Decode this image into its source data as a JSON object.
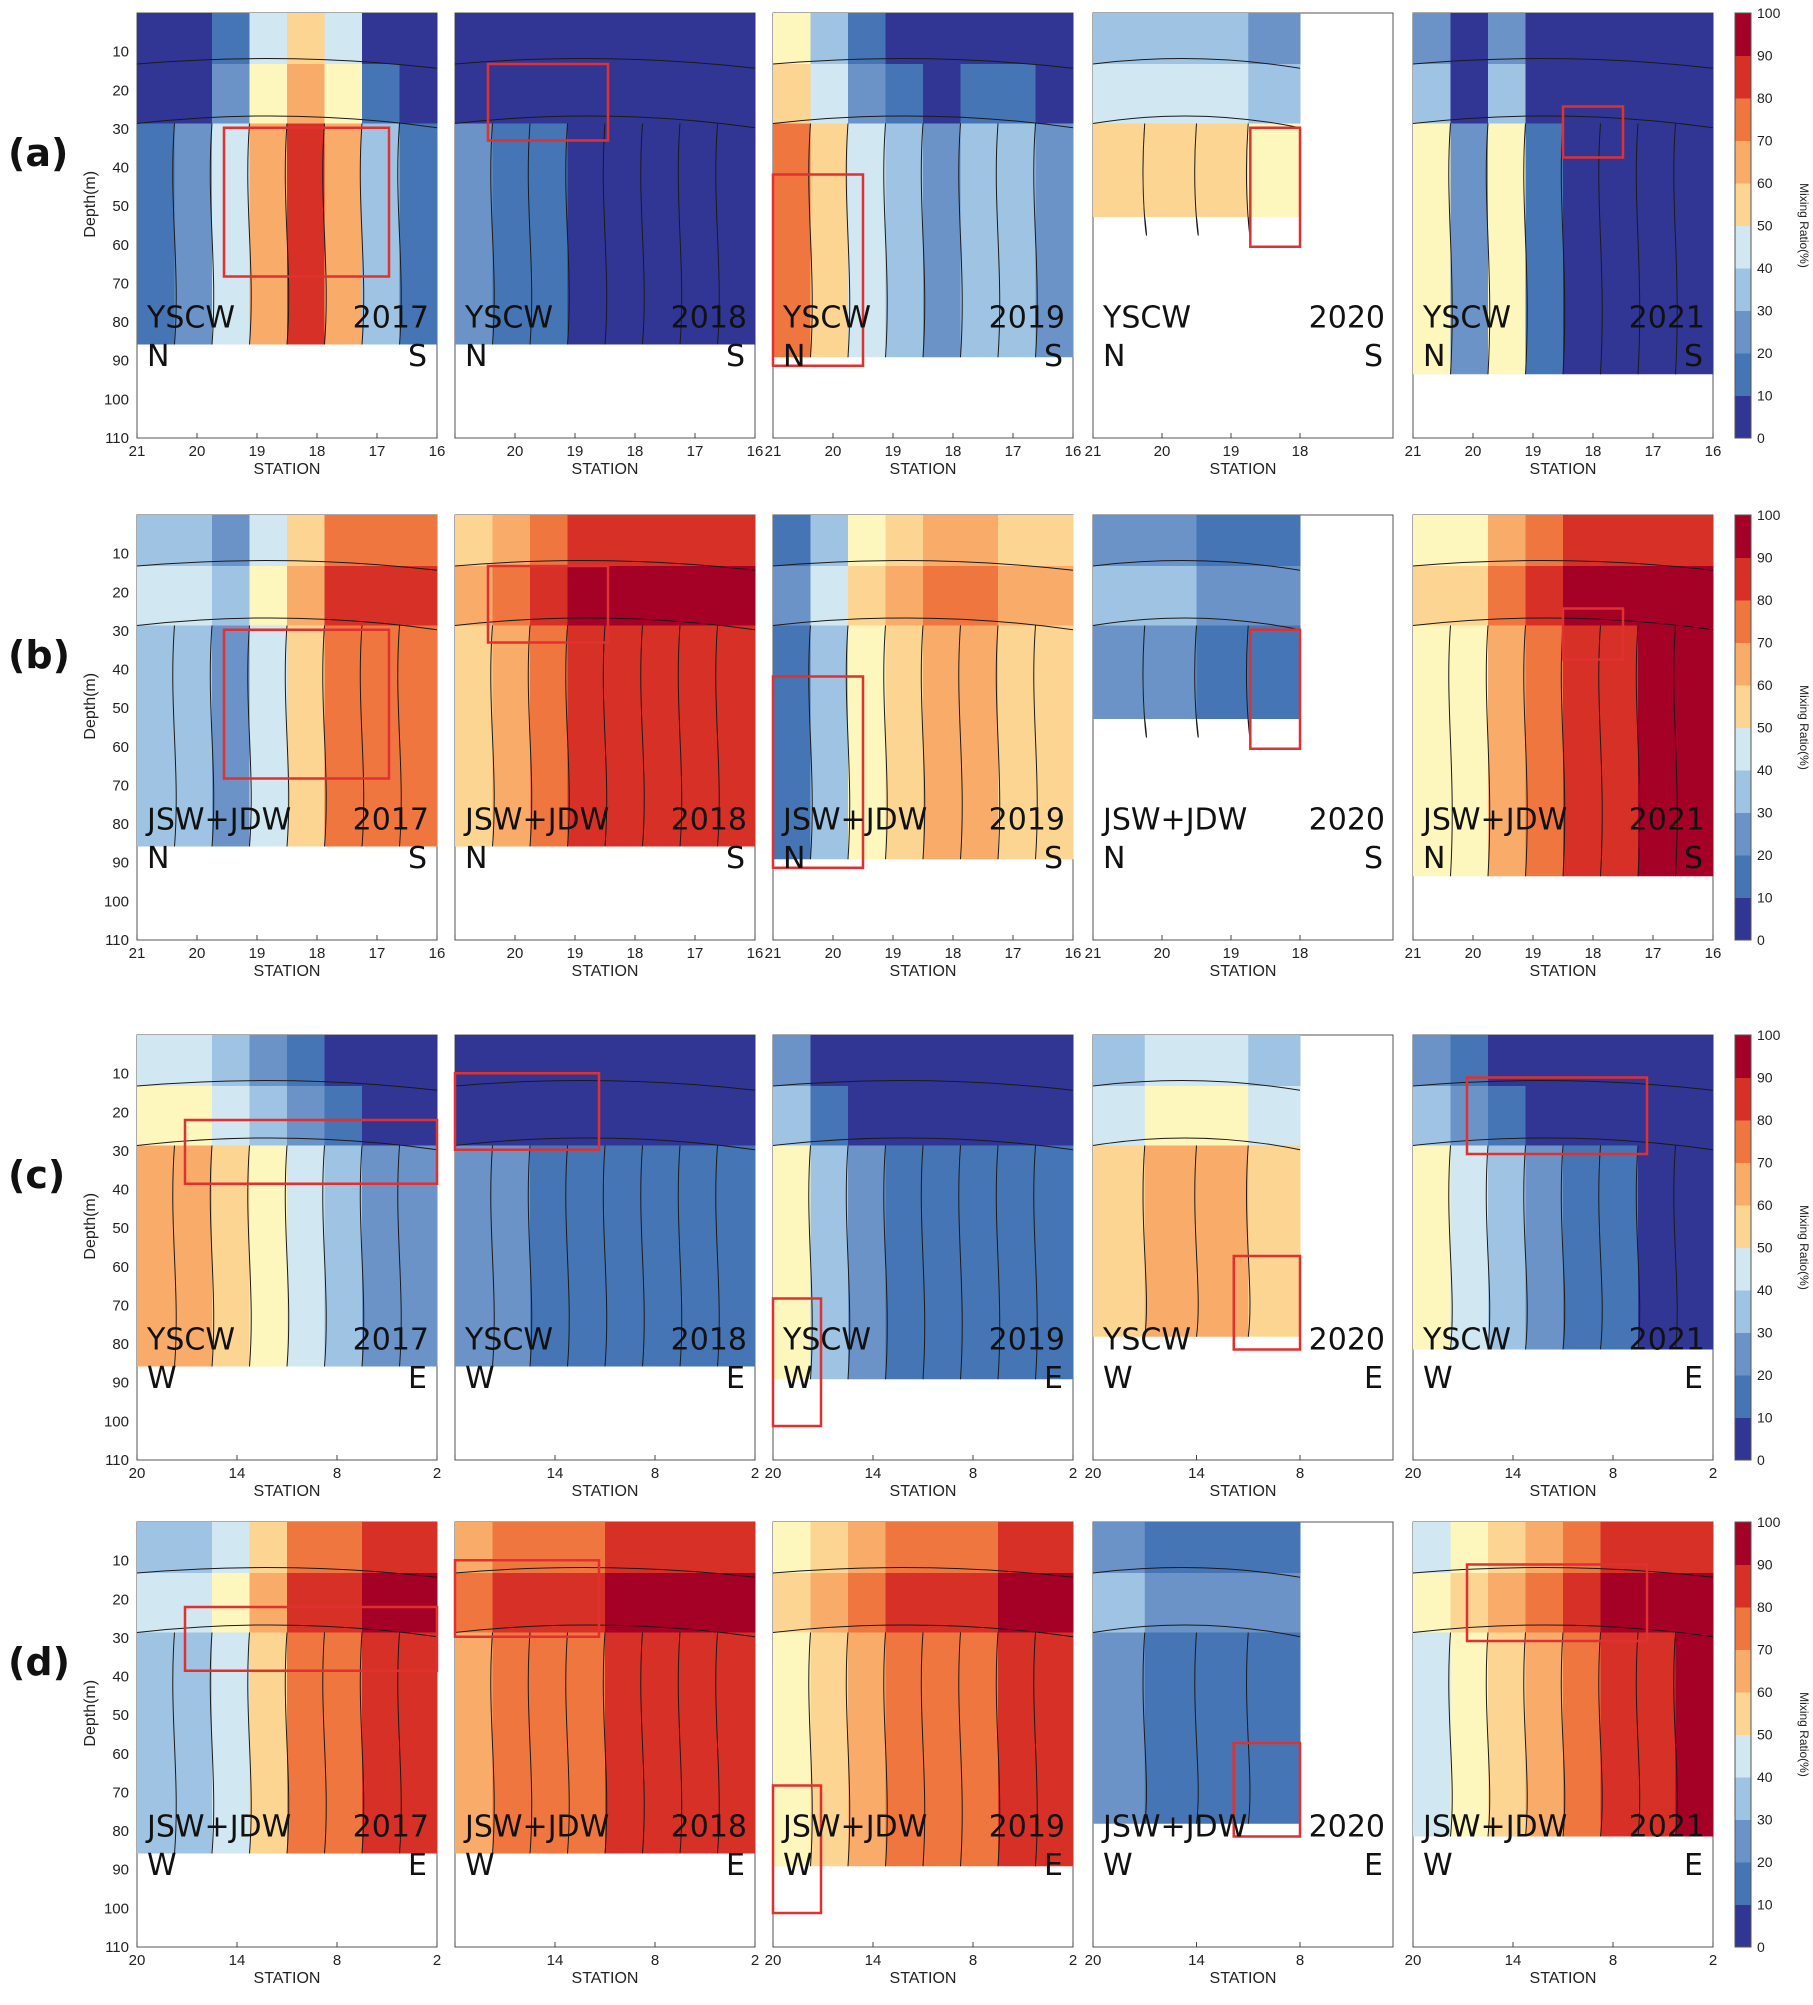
{
  "figure": {
    "x_axis_label": "STATION",
    "y_axis_label": "Depth(m)",
    "colorbar_label": "Mixing Ratio(%)",
    "colorbar_ticks": [
      "0",
      "10",
      "20",
      "30",
      "40",
      "50",
      "60",
      "70",
      "80",
      "90",
      "100"
    ],
    "depth_ticks": [
      "10",
      "20",
      "30",
      "40",
      "50",
      "60",
      "70",
      "80",
      "90",
      "100",
      "110"
    ],
    "colors": {
      "c0": "#313695",
      "c1": "#4575b4",
      "c2": "#6b93c7",
      "c3": "#9fc4e3",
      "c4": "#d1e7f2",
      "c5": "#fdf6bd",
      "c6": "#fdd592",
      "c7": "#f9ac6a",
      "c8": "#f0763f",
      "c9": "#d73027",
      "c10": "#a50026",
      "box": "#e03030"
    }
  },
  "chart_data": [
    {
      "type": "heatmap",
      "row": "(a)",
      "label": "YSCW",
      "direction": [
        "N",
        "S"
      ],
      "xlabel": "STATION",
      "ylabel": "Depth(m)",
      "ylim": [
        0,
        110
      ],
      "panels": [
        {
          "year": "2017",
          "xticks": [
            "21",
            "20",
            "19",
            "18",
            "17",
            "16"
          ],
          "levels": [
            1,
            2,
            4,
            7,
            9,
            7,
            3,
            1
          ],
          "floor": 0.78,
          "highlight": {
            "x": 0.29,
            "y": 0.27,
            "w": 0.55,
            "h": 0.35
          }
        },
        {
          "year": "2018",
          "xticks": [
            "",
            "20",
            "19",
            "18",
            "17",
            "16"
          ],
          "levels": [
            2,
            1,
            1,
            0,
            0,
            0,
            0,
            0
          ],
          "floor": 0.78,
          "highlight": {
            "x": 0.11,
            "y": 0.12,
            "w": 0.4,
            "h": 0.18
          }
        },
        {
          "year": "2019",
          "xticks": [
            "21",
            "20",
            "19",
            "18",
            "17",
            "16"
          ],
          "levels": [
            8,
            6,
            4,
            3,
            2,
            3,
            3,
            2
          ],
          "floor": 0.81,
          "highlight": {
            "x": 0.0,
            "y": 0.38,
            "w": 0.3,
            "h": 0.45
          }
        },
        {
          "year": "2020",
          "xticks": [
            "21",
            "20",
            "19",
            "18"
          ],
          "levels": [
            6,
            6,
            6,
            5
          ],
          "floor": 0.48,
          "highlight": {
            "x": 0.76,
            "y": 0.27,
            "w": 0.24,
            "h": 0.28
          }
        },
        {
          "year": "2021",
          "xticks": [
            "21",
            "20",
            "19",
            "18",
            "17",
            "16"
          ],
          "levels": [
            5,
            2,
            5,
            1,
            0,
            0,
            0,
            0
          ],
          "floor": 0.85,
          "highlight": {
            "x": 0.5,
            "y": 0.22,
            "w": 0.2,
            "h": 0.12
          }
        }
      ]
    },
    {
      "type": "heatmap",
      "row": "(b)",
      "label": "JSW+JDW",
      "direction": [
        "N",
        "S"
      ],
      "xlabel": "STATION",
      "ylabel": "Depth(m)",
      "ylim": [
        0,
        110
      ],
      "panels": [
        {
          "year": "2017",
          "xticks": [
            "21",
            "20",
            "19",
            "18",
            "17",
            "16"
          ],
          "levels": [
            3,
            3,
            2,
            4,
            6,
            8,
            8,
            8
          ],
          "floor": 0.78,
          "highlight": {
            "x": 0.29,
            "y": 0.27,
            "w": 0.55,
            "h": 0.35
          }
        },
        {
          "year": "2018",
          "xticks": [
            "",
            "20",
            "19",
            "18",
            "17",
            "16"
          ],
          "levels": [
            6,
            7,
            8,
            9,
            9,
            9,
            9,
            9
          ],
          "floor": 0.78,
          "highlight": {
            "x": 0.11,
            "y": 0.12,
            "w": 0.4,
            "h": 0.18
          }
        },
        {
          "year": "2019",
          "xticks": [
            "21",
            "20",
            "19",
            "18",
            "17",
            "16"
          ],
          "levels": [
            1,
            3,
            5,
            6,
            7,
            7,
            6,
            6
          ],
          "floor": 0.81,
          "highlight": {
            "x": 0.0,
            "y": 0.38,
            "w": 0.3,
            "h": 0.45
          }
        },
        {
          "year": "2020",
          "xticks": [
            "21",
            "20",
            "19",
            "18"
          ],
          "levels": [
            2,
            2,
            1,
            1
          ],
          "floor": 0.48,
          "highlight": {
            "x": 0.76,
            "y": 0.27,
            "w": 0.24,
            "h": 0.28
          }
        },
        {
          "year": "2021",
          "xticks": [
            "21",
            "20",
            "19",
            "18",
            "17",
            "16"
          ],
          "levels": [
            5,
            5,
            7,
            8,
            9,
            9,
            10,
            10
          ],
          "floor": 0.85,
          "highlight": {
            "x": 0.5,
            "y": 0.22,
            "w": 0.2,
            "h": 0.12
          }
        }
      ]
    },
    {
      "type": "heatmap",
      "row": "(c)",
      "label": "YSCW",
      "direction": [
        "W",
        "E"
      ],
      "xlabel": "STATION",
      "ylabel": "Depth(m)",
      "ylim": [
        0,
        110
      ],
      "panels": [
        {
          "year": "2017",
          "xticks": [
            "20",
            "14",
            "8",
            "2"
          ],
          "levels": [
            7,
            7,
            6,
            5,
            4,
            3,
            2,
            2
          ],
          "floor": 0.78,
          "highlight": {
            "x": 0.16,
            "y": 0.2,
            "w": 0.84,
            "h": 0.15
          }
        },
        {
          "year": "2018",
          "xticks": [
            "",
            "14",
            "8",
            "2"
          ],
          "levels": [
            2,
            2,
            1,
            1,
            1,
            1,
            1,
            1
          ],
          "floor": 0.78,
          "highlight": {
            "x": 0.0,
            "y": 0.09,
            "w": 0.48,
            "h": 0.18
          }
        },
        {
          "year": "2019",
          "xticks": [
            "20",
            "14",
            "8",
            "2"
          ],
          "levels": [
            5,
            3,
            2,
            1,
            1,
            1,
            1,
            1
          ],
          "floor": 0.81,
          "highlight": {
            "x": 0.0,
            "y": 0.62,
            "w": 0.16,
            "h": 0.3
          }
        },
        {
          "year": "2020",
          "xticks": [
            "20",
            "14",
            "8"
          ],
          "levels": [
            6,
            7,
            7,
            6
          ],
          "floor": 0.71,
          "highlight": {
            "x": 0.68,
            "y": 0.52,
            "w": 0.32,
            "h": 0.22
          }
        },
        {
          "year": "2021",
          "xticks": [
            "20",
            "14",
            "8",
            "2"
          ],
          "levels": [
            5,
            4,
            3,
            2,
            1,
            1,
            0,
            0
          ],
          "floor": 0.74,
          "highlight": {
            "x": 0.18,
            "y": 0.1,
            "w": 0.6,
            "h": 0.18
          }
        }
      ]
    },
    {
      "type": "heatmap",
      "row": "(d)",
      "label": "JSW+JDW",
      "direction": [
        "W",
        "E"
      ],
      "xlabel": "STATION",
      "ylabel": "Depth(m)",
      "ylim": [
        0,
        110
      ],
      "panels": [
        {
          "year": "2017",
          "xticks": [
            "20",
            "14",
            "8",
            "2"
          ],
          "levels": [
            3,
            3,
            4,
            6,
            8,
            8,
            9,
            9
          ],
          "floor": 0.78,
          "highlight": {
            "x": 0.16,
            "y": 0.2,
            "w": 0.84,
            "h": 0.15
          }
        },
        {
          "year": "2018",
          "xticks": [
            "",
            "14",
            "8",
            "2"
          ],
          "levels": [
            7,
            8,
            8,
            8,
            9,
            9,
            9,
            9
          ],
          "floor": 0.78,
          "highlight": {
            "x": 0.0,
            "y": 0.09,
            "w": 0.48,
            "h": 0.18
          }
        },
        {
          "year": "2019",
          "xticks": [
            "20",
            "14",
            "8",
            "2"
          ],
          "levels": [
            5,
            6,
            7,
            8,
            8,
            8,
            9,
            9
          ],
          "floor": 0.81,
          "highlight": {
            "x": 0.0,
            "y": 0.62,
            "w": 0.16,
            "h": 0.3
          }
        },
        {
          "year": "2020",
          "xticks": [
            "20",
            "14",
            "8"
          ],
          "levels": [
            2,
            1,
            1,
            1
          ],
          "floor": 0.71,
          "highlight": {
            "x": 0.68,
            "y": 0.52,
            "w": 0.32,
            "h": 0.22
          }
        },
        {
          "year": "2021",
          "xticks": [
            "20",
            "14",
            "8",
            "2"
          ],
          "levels": [
            4,
            5,
            6,
            7,
            8,
            9,
            9,
            10
          ],
          "floor": 0.74,
          "highlight": {
            "x": 0.18,
            "y": 0.1,
            "w": 0.6,
            "h": 0.18
          }
        }
      ]
    }
  ]
}
